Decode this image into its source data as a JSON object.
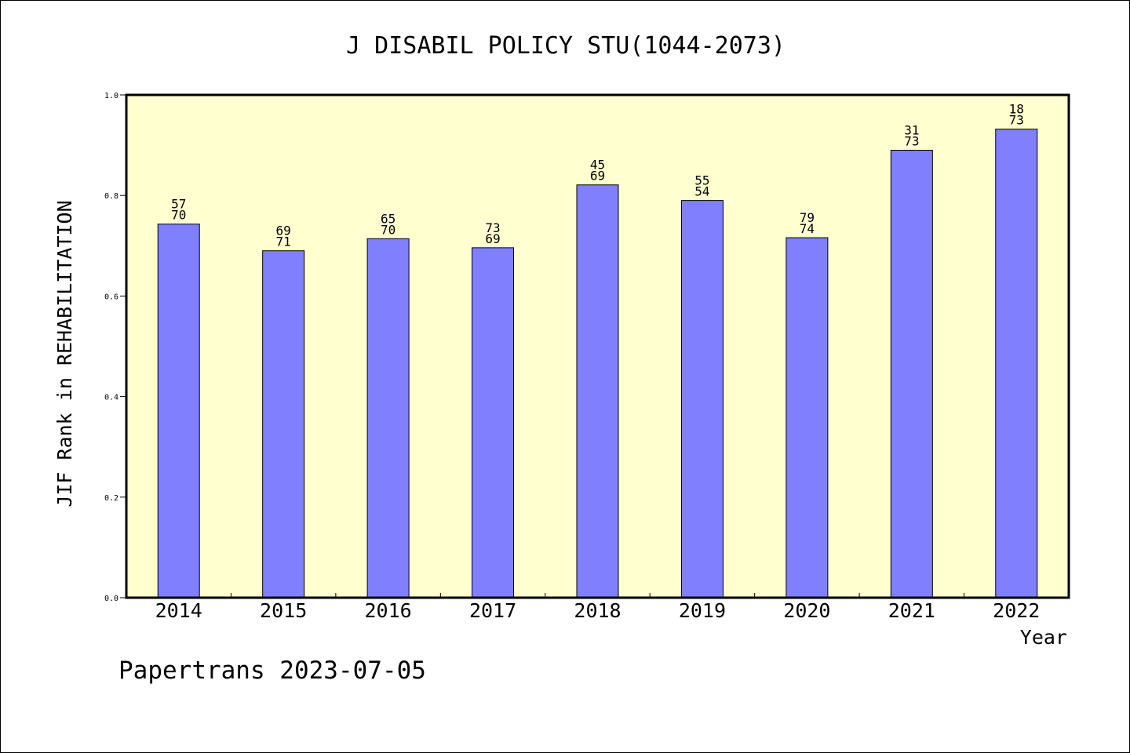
{
  "chart_data": {
    "type": "bar",
    "title": "J DISABIL POLICY STU(1044-2073)",
    "xlabel": "Year",
    "ylabel": "JIF Rank in REHABILITATION",
    "ylim": [
      0,
      1.0
    ],
    "yticks": [
      "0.0",
      "0.2",
      "0.4",
      "0.6",
      "0.8",
      "1.0"
    ],
    "grid": false,
    "plot_background": "#ffffd0",
    "bar_color": "#8080ff",
    "categories": [
      "2014",
      "2015",
      "2016",
      "2017",
      "2018",
      "2019",
      "2020",
      "2021",
      "2022"
    ],
    "values": [
      0.743,
      0.69,
      0.714,
      0.696,
      0.821,
      0.79,
      0.716,
      0.89,
      0.932
    ],
    "rank_labels": [
      {
        "rank": "57",
        "total": "70"
      },
      {
        "rank": "69",
        "total": "71"
      },
      {
        "rank": "65",
        "total": "70"
      },
      {
        "rank": "73",
        "total": "69"
      },
      {
        "rank": "45",
        "total": "69"
      },
      {
        "rank": "55",
        "total": "54"
      },
      {
        "rank": "79",
        "total": "74"
      },
      {
        "rank": "31",
        "total": "73"
      },
      {
        "rank": "18",
        "total": "73"
      }
    ]
  },
  "footer": "Papertrans 2023-07-05"
}
